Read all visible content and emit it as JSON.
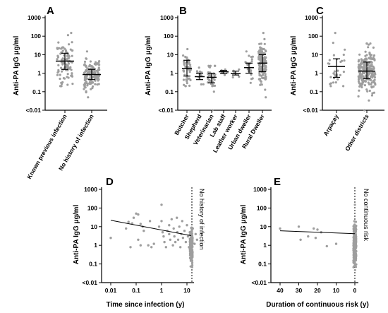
{
  "figure_colors": {
    "dots": "#9e9e9e",
    "axis": "#000000",
    "lines": "#000000"
  },
  "chart_data": [
    {
      "panel": "A",
      "type": "scatter",
      "ylabel": "Anti-PA IgG μg/ml",
      "y_scale": "log",
      "y_ticks": [
        "1000",
        "100",
        "10",
        "1",
        "0.1",
        "<0.01"
      ],
      "categories": [
        "Known previous infection",
        "No history of infection"
      ],
      "summary": [
        {
          "category": "Known previous infection",
          "center": 4.5,
          "low": 1.6,
          "high": 12
        },
        {
          "category": "No history of infection",
          "center": 0.85,
          "low": 0.45,
          "high": 1.6
        }
      ],
      "range": [
        {
          "category": "Known previous infection",
          "min": 0.2,
          "max": 150
        },
        {
          "category": "No history of infection",
          "min": 0.05,
          "max": 15
        }
      ],
      "n_points": [
        95,
        150
      ]
    },
    {
      "panel": "B",
      "type": "scatter",
      "ylabel": "Anti-PA IgG μg/ml",
      "y_scale": "log",
      "y_ticks": [
        "1000",
        "100",
        "10",
        "1",
        "0.1",
        "<0.01"
      ],
      "categories": [
        "Butcher",
        "Shepherd",
        "Veterinarian",
        "Lab staff",
        "Leather worker",
        "Urban dweller",
        "Rural Dweller"
      ],
      "summary": [
        {
          "category": "Butcher",
          "center": 1.8,
          "low": 0.7,
          "high": 5
        },
        {
          "category": "Shepherd",
          "center": 0.65,
          "low": 0.45,
          "high": 1.0
        },
        {
          "category": "Veterinarian",
          "center": 0.6,
          "low": 0.3,
          "high": 1.0
        },
        {
          "category": "Lab staff",
          "center": 1.2,
          "low": 0.95,
          "high": 1.4
        },
        {
          "category": "Leather worker",
          "center": 0.95,
          "low": 0.8,
          "high": 1.3
        },
        {
          "category": "Urban dweller",
          "center": 2.0,
          "low": 1.0,
          "high": 3.5
        },
        {
          "category": "Rural Dweller",
          "center": 3.5,
          "low": 1.2,
          "high": 10
        }
      ],
      "range": [
        {
          "category": "Butcher",
          "min": 0.2,
          "max": 20
        },
        {
          "category": "Shepherd",
          "min": 0.25,
          "max": 2
        },
        {
          "category": "Veterinarian",
          "min": 0.01,
          "max": 2.5
        },
        {
          "category": "Lab staff",
          "min": 0.8,
          "max": 1.6
        },
        {
          "category": "Leather worker",
          "min": 0.6,
          "max": 1.6
        },
        {
          "category": "Urban dweller",
          "min": 0.3,
          "max": 15
        },
        {
          "category": "Rural Dweller",
          "min": 0.05,
          "max": 150
        }
      ],
      "n_points": [
        45,
        12,
        40,
        6,
        5,
        25,
        160
      ]
    },
    {
      "panel": "C",
      "type": "scatter",
      "ylabel": "Anti-PA IgG μg/ml",
      "y_scale": "log",
      "y_ticks": [
        "1000",
        "100",
        "10",
        "1",
        "0.1",
        "<0.01"
      ],
      "categories": [
        "Arpaçay",
        "Other districts"
      ],
      "summary": [
        {
          "category": "Arpaçay",
          "center": 2.3,
          "low": 0.6,
          "high": 6
        },
        {
          "category": "Other districts",
          "center": 1.3,
          "low": 0.5,
          "high": 4
        }
      ],
      "range": [
        {
          "category": "Arpaçay",
          "min": 0.2,
          "max": 150
        },
        {
          "category": "Other districts",
          "min": 0.01,
          "max": 40
        }
      ],
      "n_points": [
        30,
        220
      ]
    },
    {
      "panel": "D",
      "type": "scatter",
      "xlabel": "Time since infection (y)",
      "ylabel": "Anti-PA IgG μg/ml",
      "x_scale": "log",
      "y_scale": "log",
      "x_ticks": [
        "0.01",
        "0.1",
        "1",
        "10"
      ],
      "y_ticks": [
        "1000",
        "100",
        "10",
        "1",
        "0.1",
        "<0.01"
      ],
      "annotation": "No history of infection",
      "fit_line": {
        "x": [
          0.01,
          35
        ],
        "y": [
          22,
          3.3
        ]
      },
      "points": [
        [
          0.01,
          2.5
        ],
        [
          0.04,
          8
        ],
        [
          0.05,
          18
        ],
        [
          0.06,
          0.8
        ],
        [
          0.07,
          15
        ],
        [
          0.08,
          30
        ],
        [
          0.1,
          50
        ],
        [
          0.12,
          45
        ],
        [
          0.12,
          2
        ],
        [
          0.15,
          14
        ],
        [
          0.15,
          1
        ],
        [
          0.18,
          10
        ],
        [
          0.2,
          6
        ],
        [
          0.3,
          1
        ],
        [
          0.35,
          20
        ],
        [
          0.4,
          0.8
        ],
        [
          0.5,
          1.2
        ],
        [
          0.8,
          10
        ],
        [
          1,
          150
        ],
        [
          1,
          20
        ],
        [
          1.1,
          5
        ],
        [
          1.2,
          3
        ],
        [
          1.3,
          1.5
        ],
        [
          1.5,
          0.8
        ],
        [
          1.7,
          6
        ],
        [
          2,
          4
        ],
        [
          2,
          12
        ],
        [
          2.2,
          2
        ],
        [
          2.5,
          25
        ],
        [
          2.8,
          1
        ],
        [
          3,
          8
        ],
        [
          3.2,
          3
        ],
        [
          3.5,
          1.5
        ],
        [
          4,
          30
        ],
        [
          4.2,
          5
        ],
        [
          4.5,
          2
        ],
        [
          5,
          10
        ],
        [
          5.5,
          0.8
        ],
        [
          6,
          4
        ],
        [
          6.5,
          20
        ],
        [
          7,
          2.5
        ],
        [
          8,
          6
        ],
        [
          9,
          1.5
        ],
        [
          10,
          12
        ],
        [
          11,
          3
        ],
        [
          12,
          0.8
        ],
        [
          13,
          5
        ],
        [
          15,
          2
        ],
        [
          17,
          8
        ],
        [
          20,
          1.2
        ],
        [
          22,
          4
        ],
        [
          25,
          2
        ]
      ],
      "no_history_column": {
        "min": 0.02,
        "max": 20,
        "n": 150
      }
    },
    {
      "panel": "E",
      "type": "scatter",
      "xlabel": "Duration of continuous risk (y)",
      "ylabel": "Anti-PA IgG μg/ml",
      "x_scale": "linear",
      "y_scale": "log",
      "xlim": [
        45,
        0
      ],
      "x_ticks": [
        "40",
        "30",
        "20",
        "10",
        "0"
      ],
      "y_ticks": [
        "1000",
        "100",
        "10",
        "1",
        "0.1",
        "<0.01"
      ],
      "annotation": "No continuous risk",
      "fit_line": {
        "x": [
          40,
          0
        ],
        "y": [
          6,
          4.2
        ]
      },
      "points": [
        [
          40,
          8
        ],
        [
          30,
          10
        ],
        [
          29,
          2
        ],
        [
          25,
          3
        ],
        [
          22,
          8
        ],
        [
          21,
          2.5
        ],
        [
          20,
          7
        ],
        [
          18,
          5
        ],
        [
          15,
          0.9
        ],
        [
          10,
          1.2
        ]
      ],
      "no_risk_column": {
        "min": 0.01,
        "max": 150,
        "n": 220
      }
    }
  ]
}
